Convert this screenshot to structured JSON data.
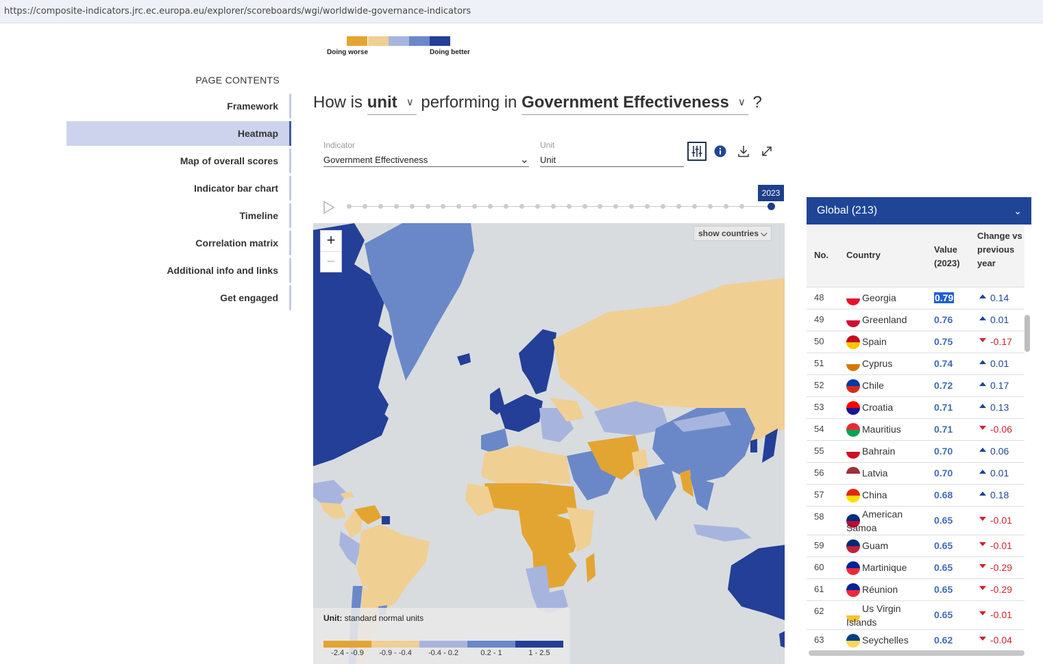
{
  "browser": {
    "url": "https://composite-indicators.jrc.ec.europa.eu/explorer/scoreboards/wgi/worldwide-governance-indicators"
  },
  "top_legend": {
    "worse_label": "Doing worse",
    "better_label": "Doing better",
    "colors": [
      "#e3a532",
      "#f0cf93",
      "#a7b5de",
      "#6a88c8",
      "#233f97"
    ]
  },
  "nav": {
    "title": "PAGE CONTENTS",
    "items": [
      {
        "label": "Framework",
        "active": false
      },
      {
        "label": "Heatmap",
        "active": true
      },
      {
        "label": "Map of overall scores",
        "active": false
      },
      {
        "label": "Indicator bar chart",
        "active": false
      },
      {
        "label": "Timeline",
        "active": false
      },
      {
        "label": "Correlation matrix",
        "active": false
      },
      {
        "label": "Additional info and links",
        "active": false
      },
      {
        "label": "Get engaged",
        "active": false
      }
    ]
  },
  "question": {
    "prefix": "How is",
    "unit": "unit",
    "middle": "performing in",
    "indicator": "Government Effectiveness",
    "suffix": "?"
  },
  "filters": {
    "indicator_label": "Indicator",
    "indicator_value": "Government Effectiveness",
    "unit_label": "Unit",
    "unit_value": "Unit"
  },
  "toolbar": {
    "icons": [
      "sliders-icon",
      "info-icon",
      "download-icon",
      "expand-icon"
    ]
  },
  "timeline": {
    "selected_year": "2023",
    "steps": 27
  },
  "map": {
    "show_countries": "show countries",
    "zoom_in": "+",
    "zoom_out": "−",
    "legend_unit_label": "Unit:",
    "legend_unit_value": "standard normal units",
    "legend_ranges": [
      {
        "label": "-2.4 - -0.9",
        "color": "#e3a532"
      },
      {
        "label": "-0.9 - -0.4",
        "color": "#f0cf93"
      },
      {
        "label": "-0.4 - 0.2",
        "color": "#a7b5de"
      },
      {
        "label": "0.2 - 1",
        "color": "#6a88c8"
      },
      {
        "label": "1 - 2.5",
        "color": "#233f97"
      }
    ]
  },
  "panel": {
    "region": "Global (213)",
    "headers": {
      "no": "No.",
      "country": "Country",
      "value": "Value (2023)",
      "change": "Change vs previous year"
    },
    "rows": [
      {
        "no": "48",
        "country": "Georgia",
        "value": "0.79",
        "change": "0.14",
        "dir": "up",
        "flag": [
          "#ffffff",
          "#e8112d"
        ],
        "highlight": true
      },
      {
        "no": "49",
        "country": "Greenland",
        "value": "0.76",
        "change": "0.01",
        "dir": "up",
        "flag": [
          "#ffffff",
          "#d00c33"
        ]
      },
      {
        "no": "50",
        "country": "Spain",
        "value": "0.75",
        "change": "-0.17",
        "dir": "down",
        "flag": [
          "#c60b1e",
          "#ffc400"
        ]
      },
      {
        "no": "51",
        "country": "Cyprus",
        "value": "0.74",
        "change": "0.01",
        "dir": "up",
        "flag": [
          "#ffffff",
          "#d57800"
        ]
      },
      {
        "no": "52",
        "country": "Chile",
        "value": "0.72",
        "change": "0.17",
        "dir": "up",
        "flag": [
          "#0039a6",
          "#d52b1e"
        ]
      },
      {
        "no": "53",
        "country": "Croatia",
        "value": "0.71",
        "change": "0.13",
        "dir": "up",
        "flag": [
          "#ff0000",
          "#171796"
        ]
      },
      {
        "no": "54",
        "country": "Mauritius",
        "value": "0.71",
        "change": "-0.06",
        "dir": "down",
        "flag": [
          "#ea2839",
          "#00a551"
        ]
      },
      {
        "no": "55",
        "country": "Bahrain",
        "value": "0.70",
        "change": "0.06",
        "dir": "up",
        "flag": [
          "#ffffff",
          "#ce1126"
        ]
      },
      {
        "no": "56",
        "country": "Latvia",
        "value": "0.70",
        "change": "0.01",
        "dir": "up",
        "flag": [
          "#9e3039",
          "#ffffff"
        ]
      },
      {
        "no": "57",
        "country": "China",
        "value": "0.68",
        "change": "0.18",
        "dir": "up",
        "flag": [
          "#de2910",
          "#ffde00"
        ]
      },
      {
        "no": "58",
        "country": "American Samoa",
        "value": "0.65",
        "change": "-0.01",
        "dir": "down",
        "flag": [
          "#002b7f",
          "#bf0a30"
        ],
        "tall": true
      },
      {
        "no": "59",
        "country": "Guam",
        "value": "0.65",
        "change": "-0.01",
        "dir": "down",
        "flag": [
          "#00297b",
          "#c62139"
        ]
      },
      {
        "no": "60",
        "country": "Martinique",
        "value": "0.65",
        "change": "-0.29",
        "dir": "down",
        "flag": [
          "#002395",
          "#ed2939"
        ]
      },
      {
        "no": "61",
        "country": "Réunion",
        "value": "0.65",
        "change": "-0.29",
        "dir": "down",
        "flag": [
          "#002395",
          "#ed2939"
        ]
      },
      {
        "no": "62",
        "country": "Us Virgin Islands",
        "value": "0.65",
        "change": "-0.01",
        "dir": "down",
        "flag": [
          "#ffffff",
          "#f4c430"
        ],
        "tall": true
      },
      {
        "no": "63",
        "country": "Seychelles",
        "value": "0.62",
        "change": "-0.04",
        "dir": "down",
        "flag": [
          "#003f87",
          "#fcd856"
        ]
      }
    ]
  }
}
